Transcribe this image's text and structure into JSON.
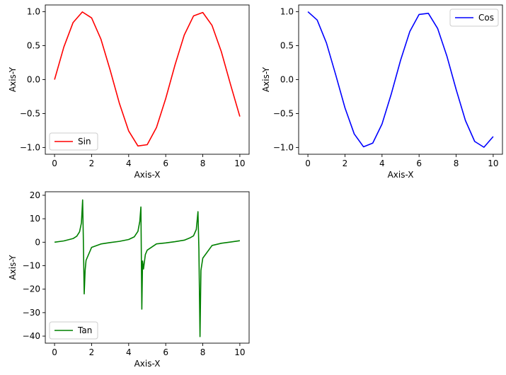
{
  "chart_data": [
    {
      "type": "line",
      "xlabel": "Axis-X",
      "ylabel": "Axis-Y",
      "xlim": [
        -0.5,
        10.5
      ],
      "ylim": [
        -1.1,
        1.1
      ],
      "xticks": [
        0,
        2,
        4,
        6,
        8,
        10
      ],
      "yticks": [
        1.0,
        0.5,
        0.0,
        -0.5,
        -1.0
      ],
      "ytick_labels": [
        "1.0",
        "0.5",
        "0.0",
        "−0.5",
        "−1.0"
      ],
      "legend_position": "lower-left",
      "series": [
        {
          "name": "Sin",
          "color": "#ff0000",
          "x": [
            0,
            0.5,
            1,
            1.5,
            2,
            2.5,
            3,
            3.5,
            4,
            4.5,
            5,
            5.5,
            6,
            6.5,
            7,
            7.5,
            8,
            8.5,
            9,
            9.5,
            10
          ],
          "y": [
            0,
            0.479,
            0.841,
            0.997,
            0.909,
            0.598,
            0.141,
            -0.351,
            -0.757,
            -0.978,
            -0.959,
            -0.706,
            -0.279,
            0.215,
            0.657,
            0.938,
            0.989,
            0.798,
            0.412,
            -0.075,
            -0.544
          ]
        }
      ]
    },
    {
      "type": "line",
      "xlabel": "Axis-X",
      "ylabel": "Axis-Y",
      "xlim": [
        -0.5,
        10.5
      ],
      "ylim": [
        -1.1,
        1.1
      ],
      "xticks": [
        0,
        2,
        4,
        6,
        8,
        10
      ],
      "yticks": [
        1.0,
        0.5,
        0.0,
        -0.5,
        -1.0
      ],
      "ytick_labels": [
        "1.0",
        "0.5",
        "0.0",
        "−0.5",
        "−1.0"
      ],
      "legend_position": "upper-right",
      "series": [
        {
          "name": "Cos",
          "color": "#0000ff",
          "x": [
            0,
            0.5,
            1,
            1.5,
            2,
            2.5,
            3,
            3.5,
            4,
            4.5,
            5,
            5.5,
            6,
            6.5,
            7,
            7.5,
            8,
            8.5,
            9,
            9.5,
            10
          ],
          "y": [
            1,
            0.878,
            0.54,
            0.071,
            -0.416,
            -0.801,
            -0.99,
            -0.936,
            -0.654,
            -0.211,
            0.284,
            0.709,
            0.96,
            0.977,
            0.754,
            0.347,
            -0.146,
            -0.602,
            -0.911,
            -0.997,
            -0.839
          ]
        }
      ]
    },
    {
      "type": "line",
      "xlabel": "Axis-X",
      "ylabel": "Axis-Y",
      "xlim": [
        -0.5,
        10.5
      ],
      "ylim": [
        -43,
        21.5
      ],
      "xticks": [
        0,
        2,
        4,
        6,
        8,
        10
      ],
      "yticks": [
        20,
        10,
        0,
        -10,
        -20,
        -30,
        -40
      ],
      "ytick_labels": [
        "20",
        "10",
        "0",
        "−10",
        "−20",
        "−30",
        "−40"
      ],
      "legend_position": "lower-left",
      "series": [
        {
          "name": "Tan",
          "color": "#008000",
          "x": [
            0,
            0.5,
            1.0,
            1.2,
            1.35,
            1.45,
            1.515,
            1.55,
            1.6,
            1.65,
            1.7,
            2.0,
            2.5,
            3.0,
            3.5,
            4.0,
            4.3,
            4.5,
            4.6,
            4.66,
            4.71,
            4.75,
            4.8,
            4.9,
            5.0,
            5.5,
            6.0,
            6.5,
            7.0,
            7.3,
            7.5,
            7.65,
            7.74,
            7.79,
            7.85,
            7.9,
            8.0,
            8.5,
            9.0,
            9.5,
            10.0
          ],
          "y": [
            0,
            0.55,
            1.56,
            2.57,
            4.45,
            8.24,
            18.0,
            3.0,
            -22.0,
            -12.0,
            -7.7,
            -2.19,
            -0.75,
            -0.14,
            0.37,
            1.16,
            2.28,
            4.64,
            8.86,
            15.0,
            -28.5,
            -8.0,
            -11.4,
            -5.27,
            -3.38,
            -0.71,
            -0.29,
            0.22,
            0.87,
            1.82,
            2.71,
            5.45,
            13.0,
            -3.0,
            -40.2,
            -12.0,
            -6.8,
            -1.39,
            -0.45,
            0.08,
            0.65
          ]
        }
      ]
    }
  ]
}
